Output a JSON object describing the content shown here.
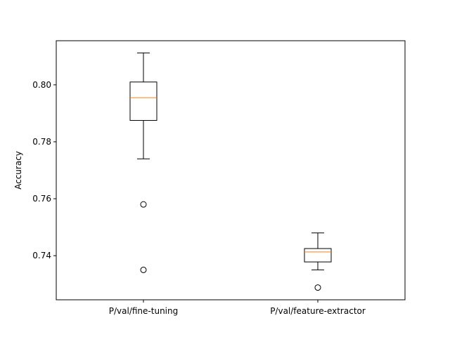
{
  "chart_data": {
    "type": "box",
    "title": "",
    "xlabel": "",
    "ylabel": "Accuracy",
    "ylim": [
      0.7245,
      0.8155
    ],
    "yticks": [
      0.74,
      0.76,
      0.78,
      0.8
    ],
    "ytick_labels": [
      "0.74",
      "0.76",
      "0.78",
      "0.80"
    ],
    "grid": false,
    "categories": [
      "P/val/fine-tuning",
      "P/val/feature-extractor"
    ],
    "boxes": [
      {
        "name": "P/val/fine-tuning",
        "whisker_low": 0.774,
        "q1": 0.7875,
        "median": 0.7955,
        "q3": 0.801,
        "whisker_high": 0.8112,
        "outliers": [
          0.758,
          0.735
        ]
      },
      {
        "name": "P/val/feature-extractor",
        "whisker_low": 0.735,
        "q1": 0.7378,
        "median": 0.7413,
        "q3": 0.7425,
        "whisker_high": 0.748,
        "outliers": [
          0.7288
        ]
      }
    ],
    "colors": {
      "box": "#000000",
      "median": "#ff7f0e",
      "outlier": "#000000"
    }
  }
}
